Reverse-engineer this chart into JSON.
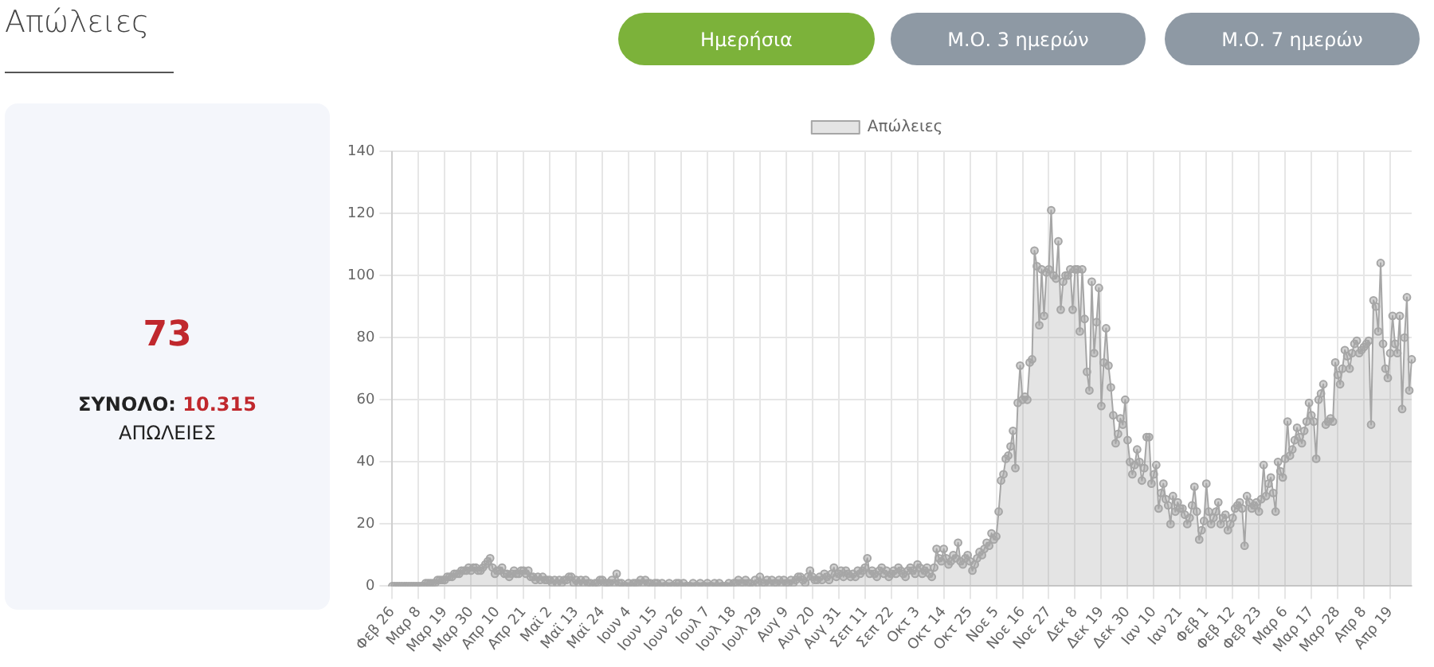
{
  "chart_data": {
    "type": "area",
    "title": "Απώλειες",
    "annotations": [
      "Ημερήσια",
      "Μ.Ο. 3 ημερών",
      "Μ.Ο. 7 ημερών",
      "73",
      "ΣΥΝΟΛΟ:",
      "10.315",
      "ΑΠΩΛΕΙΕΣ"
    ],
    "categories": [
      "Φεβ 26",
      null,
      null,
      null,
      null,
      null,
      null,
      null,
      null,
      null,
      null,
      "Μαρ 8",
      null,
      null,
      null,
      null,
      null,
      null,
      null,
      null,
      null,
      null,
      "Μαρ 19",
      null,
      null,
      null,
      null,
      null,
      null,
      null,
      null,
      null,
      null,
      "Μαρ 30",
      null,
      null,
      null,
      null,
      null,
      null,
      null,
      null,
      null,
      null,
      "Απρ 10",
      null,
      null,
      null,
      null,
      null,
      null,
      null,
      null,
      null,
      null,
      "Απρ 21",
      null,
      null,
      null,
      null,
      null,
      null,
      null,
      null,
      null,
      null,
      "Μαϊ 2",
      null,
      null,
      null,
      null,
      null,
      null,
      null,
      null,
      null,
      null,
      "Μαϊ 13",
      null,
      null,
      null,
      null,
      null,
      null,
      null,
      null,
      null,
      null,
      "Μαϊ 24",
      null,
      null,
      null,
      null,
      null,
      null,
      null,
      null,
      null,
      null,
      "Ιουν 4",
      null,
      null,
      null,
      null,
      null,
      null,
      null,
      null,
      null,
      null,
      "Ιουν 15",
      null,
      null,
      null,
      null,
      null,
      null,
      null,
      null,
      null,
      null,
      "Ιουν 26",
      null,
      null,
      null,
      null,
      null,
      null,
      null,
      null,
      null,
      null,
      "Ιουλ 7",
      null,
      null,
      null,
      null,
      null,
      null,
      null,
      null,
      null,
      null,
      "Ιουλ 18",
      null,
      null,
      null,
      null,
      null,
      null,
      null,
      null,
      null,
      null,
      "Ιουλ 29",
      null,
      null,
      null,
      null,
      null,
      null,
      null,
      null,
      null,
      null,
      "Αυγ 9",
      null,
      null,
      null,
      null,
      null,
      null,
      null,
      null,
      null,
      null,
      "Αυγ 20",
      null,
      null,
      null,
      null,
      null,
      null,
      null,
      null,
      null,
      null,
      "Αυγ 31",
      null,
      null,
      null,
      null,
      null,
      null,
      null,
      null,
      null,
      null,
      "Σεπ 11",
      null,
      null,
      null,
      null,
      null,
      null,
      null,
      null,
      null,
      null,
      "Σεπ 22",
      null,
      null,
      null,
      null,
      null,
      null,
      null,
      null,
      null,
      null,
      "Οκτ 3",
      null,
      null,
      null,
      null,
      null,
      null,
      null,
      null,
      null,
      null,
      "Οκτ 14",
      null,
      null,
      null,
      null,
      null,
      null,
      null,
      null,
      null,
      null,
      "Οκτ 25",
      null,
      null,
      null,
      null,
      null,
      null,
      null,
      null,
      null,
      null,
      "Νοε 5",
      null,
      null,
      null,
      null,
      null,
      null,
      null,
      null,
      null,
      null,
      "Νοε 16",
      null,
      null,
      null,
      null,
      null,
      null,
      null,
      null,
      null,
      null,
      "Νοε 27",
      null,
      null,
      null,
      null,
      null,
      null,
      null,
      null,
      null,
      null,
      "Δεκ 8",
      null,
      null,
      null,
      null,
      null,
      null,
      null,
      null,
      null,
      null,
      "Δεκ 19",
      null,
      null,
      null,
      null,
      null,
      null,
      null,
      null,
      null,
      null,
      "Δεκ 30",
      null,
      null,
      null,
      null,
      null,
      null,
      null,
      null,
      null,
      null,
      "Ιαν 10",
      null,
      null,
      null,
      null,
      null,
      null,
      null,
      null,
      null,
      null,
      "Ιαν 21",
      null,
      null,
      null,
      null,
      null,
      null,
      null,
      null,
      null,
      null,
      "Φεβ 1",
      null,
      null,
      null,
      null,
      null,
      null,
      null,
      null,
      null,
      null,
      "Φεβ 12",
      null,
      null,
      null,
      null,
      null,
      null,
      null,
      null,
      null,
      null,
      "Φεβ 23",
      null,
      null,
      null,
      null,
      null,
      null,
      null,
      null,
      null,
      null,
      "Μαρ 6",
      null,
      null,
      null,
      null,
      null,
      null,
      null,
      null,
      null,
      null,
      "Μαρ 17",
      null,
      null,
      null,
      null,
      null,
      null,
      null,
      null,
      null,
      null,
      "Μαρ 28",
      null,
      null,
      null,
      null,
      null,
      null,
      null,
      null,
      null,
      null,
      "Απρ 8",
      null,
      null,
      null,
      null,
      null,
      null,
      null,
      null,
      null,
      null,
      "Απρ 19",
      null,
      null,
      null,
      null,
      null,
      null,
      null,
      null,
      null
    ],
    "series": [
      {
        "name": "Απώλειες",
        "color": "#a6a6a6",
        "values": [
          0,
          0,
          0,
          0,
          0,
          0,
          0,
          0,
          0,
          0,
          0,
          0,
          0,
          0,
          1,
          1,
          1,
          1,
          1,
          2,
          2,
          2,
          2,
          3,
          3,
          3,
          4,
          4,
          4,
          5,
          5,
          5,
          6,
          5,
          6,
          6,
          5,
          5,
          6,
          7,
          8,
          9,
          6,
          4,
          5,
          5,
          6,
          4,
          4,
          3,
          4,
          5,
          4,
          4,
          5,
          5,
          4,
          5,
          3,
          3,
          2,
          3,
          2,
          3,
          2,
          2,
          2,
          1,
          2,
          1,
          2,
          1,
          2,
          2,
          3,
          3,
          1,
          2,
          1,
          2,
          1,
          2,
          1,
          1,
          0,
          1,
          1,
          2,
          2,
          1,
          1,
          1,
          2,
          1,
          4,
          1,
          1,
          0,
          0,
          1,
          0,
          1,
          1,
          1,
          2,
          1,
          2,
          1,
          1,
          0,
          1,
          1,
          0,
          1,
          0,
          0,
          1,
          0,
          0,
          1,
          1,
          0,
          1,
          0,
          0,
          0,
          1,
          0,
          0,
          1,
          0,
          0,
          1,
          0,
          0,
          1,
          0,
          1,
          0,
          0,
          0,
          1,
          0,
          1,
          1,
          2,
          1,
          1,
          2,
          1,
          1,
          0,
          2,
          1,
          3,
          1,
          1,
          2,
          1,
          2,
          1,
          1,
          2,
          1,
          2,
          1,
          1,
          2,
          1,
          2,
          3,
          3,
          2,
          1,
          3,
          5,
          3,
          2,
          2,
          3,
          2,
          4,
          3,
          2,
          4,
          6,
          3,
          4,
          5,
          3,
          5,
          4,
          3,
          4,
          3,
          5,
          4,
          5,
          6,
          9,
          4,
          5,
          4,
          3,
          5,
          6,
          4,
          5,
          3,
          4,
          5,
          4,
          6,
          5,
          4,
          3,
          5,
          6,
          5,
          4,
          7,
          6,
          4,
          5,
          6,
          4,
          3,
          6,
          12,
          9,
          8,
          12,
          9,
          7,
          8,
          10,
          9,
          14,
          8,
          7,
          9,
          10,
          8,
          5,
          7,
          9,
          11,
          10,
          12,
          14,
          13,
          17,
          15,
          16,
          24,
          34,
          36,
          41,
          42,
          45,
          50,
          38,
          59,
          71,
          60,
          61,
          60,
          72,
          73,
          108,
          103,
          84,
          102,
          87,
          101,
          102,
          121,
          100,
          99,
          111,
          89,
          98,
          100,
          100,
          102,
          89,
          102,
          102,
          82,
          102,
          86,
          69,
          63,
          98,
          75,
          85,
          96,
          58,
          72,
          83,
          71,
          64,
          55,
          46,
          49,
          54,
          52,
          60,
          47,
          40,
          36,
          39,
          44,
          40,
          34,
          38,
          48,
          48,
          33,
          36,
          39,
          25,
          30,
          33,
          28,
          26,
          20,
          29,
          24,
          27,
          25,
          25,
          23,
          20,
          22,
          26,
          32,
          24,
          15,
          18,
          21,
          33,
          24,
          20,
          22,
          24,
          27,
          20,
          22,
          23,
          18,
          20,
          22,
          25,
          26,
          27,
          25,
          13,
          29,
          27,
          25,
          26,
          27,
          24,
          28,
          39,
          29,
          33,
          35,
          30,
          24,
          40,
          37,
          35,
          41,
          53,
          42,
          44,
          47,
          51,
          48,
          46,
          50,
          53,
          59,
          55,
          53,
          41,
          60,
          62,
          65,
          52,
          53,
          54,
          53,
          72,
          68,
          65,
          70,
          76,
          74,
          70,
          75,
          78,
          79,
          75,
          76,
          77,
          78,
          79,
          52,
          92,
          90,
          82,
          104,
          78,
          70,
          67,
          75,
          87,
          78,
          75,
          87,
          57,
          80,
          93,
          63,
          73
        ]
      }
    ],
    "ylim": [
      0,
      140
    ],
    "yticks": [
      0,
      20,
      40,
      60,
      80,
      100,
      120,
      140
    ],
    "grid": true,
    "legend": "top",
    "marker": "circle"
  }
}
